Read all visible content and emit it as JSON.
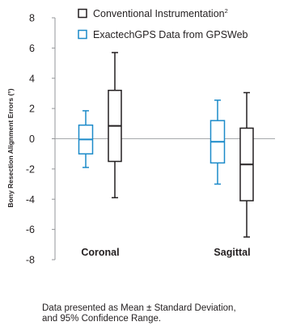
{
  "chart_data": {
    "type": "box",
    "ylabel": "Bony Resection Alignment Errors (°)",
    "ylim": [
      -8,
      8
    ],
    "yticks": [
      -8,
      -6,
      -4,
      -2,
      0,
      2,
      4,
      6,
      8
    ],
    "categories": [
      "Coronal",
      "Sagittal"
    ],
    "legend_position": "top",
    "series": [
      {
        "name": "Conventional Instrumentation",
        "name_superscript": "2",
        "color": "#231f20",
        "data": [
          {
            "category": "Coronal",
            "mean": 0.85,
            "box_low": -1.5,
            "box_high": 3.2,
            "whisker_low": -3.9,
            "whisker_high": 5.7
          },
          {
            "category": "Sagittal",
            "mean": -1.7,
            "box_low": -4.1,
            "box_high": 0.7,
            "whisker_low": -6.5,
            "whisker_high": 3.05
          }
        ]
      },
      {
        "name": "ExactechGPS Data from GPSWeb",
        "color": "#1b8ac9",
        "data": [
          {
            "category": "Coronal",
            "mean": -0.05,
            "box_low": -1.0,
            "box_high": 0.9,
            "whisker_low": -1.9,
            "whisker_high": 1.85
          },
          {
            "category": "Sagittal",
            "mean": -0.2,
            "box_low": -1.6,
            "box_high": 1.2,
            "whisker_low": -3.0,
            "whisker_high": 2.55
          }
        ]
      }
    ],
    "zero_line_color": "#a7a9ac"
  },
  "footnote": {
    "line1": "Data presented as Mean ± Standard Deviation,",
    "line2": "and 95% Confidence Range."
  }
}
